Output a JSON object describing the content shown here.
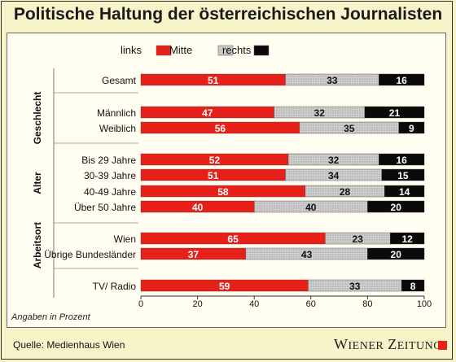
{
  "title": "Politische Haltung der österreichischen Journalisten",
  "note": "Angaben in Prozent",
  "source": "Quelle: Medienhaus Wien",
  "brand": "Wiener Zeitung",
  "colors": {
    "links": "#e8201a",
    "mitte": "#c8c8c8",
    "rechts": "#0a0a0a",
    "bg": "#f7f4c9"
  },
  "chart_data": {
    "type": "bar",
    "orientation": "horizontal",
    "stacked": true,
    "xlim": [
      0,
      100
    ],
    "xticks": [
      0,
      20,
      40,
      60,
      80,
      100
    ],
    "legend": {
      "placement": "top",
      "entries": [
        "links",
        "Mitte",
        "rechts"
      ]
    },
    "groups": [
      {
        "label": "",
        "categories": [
          "Gesamt"
        ]
      },
      {
        "label": "Geschlecht",
        "categories": [
          "Männlich",
          "Weiblich"
        ]
      },
      {
        "label": "Alter",
        "categories": [
          "Bis 29 Jahre",
          "30-39 Jahre",
          "40-49 Jahre",
          "Über 50 Jahre"
        ]
      },
      {
        "label": "Arbeitsort",
        "categories": [
          "Wien",
          "Übrige Bundesländer"
        ]
      },
      {
        "label": "",
        "categories": [
          "TV/ Radio"
        ]
      }
    ],
    "categories": [
      "Gesamt",
      "Männlich",
      "Weiblich",
      "Bis 29 Jahre",
      "30-39 Jahre",
      "40-49 Jahre",
      "Über 50 Jahre",
      "Wien",
      "Übrige Bundesländer",
      "TV/ Radio"
    ],
    "series": [
      {
        "name": "links",
        "values": [
          51,
          47,
          56,
          52,
          51,
          58,
          40,
          65,
          37,
          59
        ]
      },
      {
        "name": "Mitte",
        "values": [
          33,
          32,
          35,
          32,
          34,
          28,
          40,
          23,
          43,
          33
        ]
      },
      {
        "name": "rechts",
        "values": [
          16,
          21,
          9,
          16,
          15,
          14,
          20,
          12,
          20,
          8
        ]
      }
    ]
  }
}
